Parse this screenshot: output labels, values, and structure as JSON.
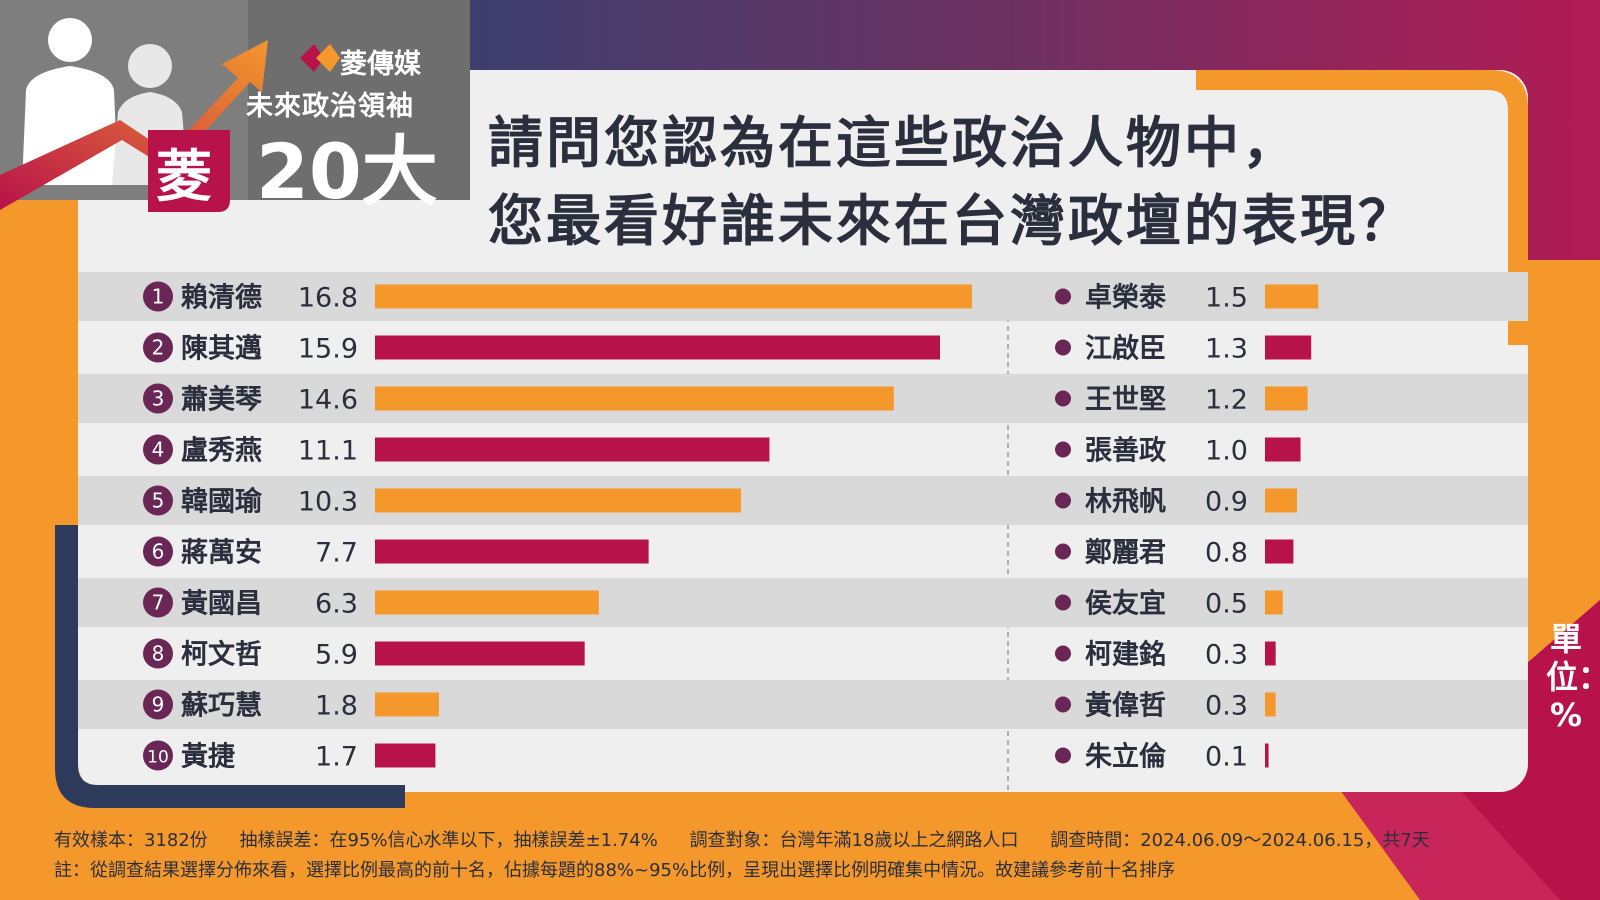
{
  "brand": {
    "name": "菱傳媒",
    "subtitle": "未來政治領袖",
    "big": "20大",
    "char": "菱"
  },
  "headline": {
    "line1": "請問您認為在這些政治人物中，",
    "line2": "您最看好誰未來在台灣政壇的表現？"
  },
  "unit_label": "單位：%",
  "colors": {
    "orange": "#F4982C",
    "crimson": "#B8124A",
    "rank_circle": "#6A2755",
    "navy": "#2D3A5C"
  },
  "chart_data": [
    {
      "type": "bar",
      "categories": [
        "賴清德",
        "陳其邁",
        "蕭美琴",
        "盧秀燕",
        "韓國瑜",
        "蔣萬安",
        "黃國昌",
        "柯文哲",
        "蘇巧慧",
        "黃捷"
      ],
      "ranks": [
        "1",
        "2",
        "3",
        "4",
        "5",
        "6",
        "7",
        "8",
        "9",
        "10"
      ],
      "values": [
        16.8,
        15.9,
        14.6,
        11.1,
        10.3,
        7.7,
        6.3,
        5.9,
        1.8,
        1.7
      ],
      "value_labels": [
        "16.8",
        "15.9",
        "14.6",
        "11.1",
        "10.3",
        "7.7",
        "6.3",
        "5.9",
        "1.8",
        "1.7"
      ],
      "orientation": "horizontal",
      "xlim": [
        0,
        16.8
      ]
    },
    {
      "type": "bar",
      "categories": [
        "卓榮泰",
        "江啟臣",
        "王世堅",
        "張善政",
        "林飛帆",
        "鄭麗君",
        "侯友宜",
        "柯建銘",
        "黃偉哲",
        "朱立倫"
      ],
      "values": [
        1.5,
        1.3,
        1.2,
        1.0,
        0.9,
        0.8,
        0.5,
        0.3,
        0.3,
        0.1
      ],
      "value_labels": [
        "1.5",
        "1.3",
        "1.2",
        "1.0",
        "0.9",
        "0.8",
        "0.5",
        "0.3",
        "0.3",
        "0.1"
      ],
      "orientation": "horizontal",
      "xlim": [
        0,
        16.8
      ]
    }
  ],
  "footer": {
    "sample": "有效樣本：3182份",
    "error": "抽樣誤差：在95%信心水準以下，抽樣誤差±1.74%",
    "target": "調查對象：台灣年滿18歲以上之網路人口",
    "period": "調查時間：2024.06.09～2024.06.15，共7天",
    "note": "註：從調查結果選擇分佈來看，選擇比例最高的前十名，佔據每題的88%~95%比例，呈現出選擇比例明確集中情況。故建議參考前十名排序"
  }
}
